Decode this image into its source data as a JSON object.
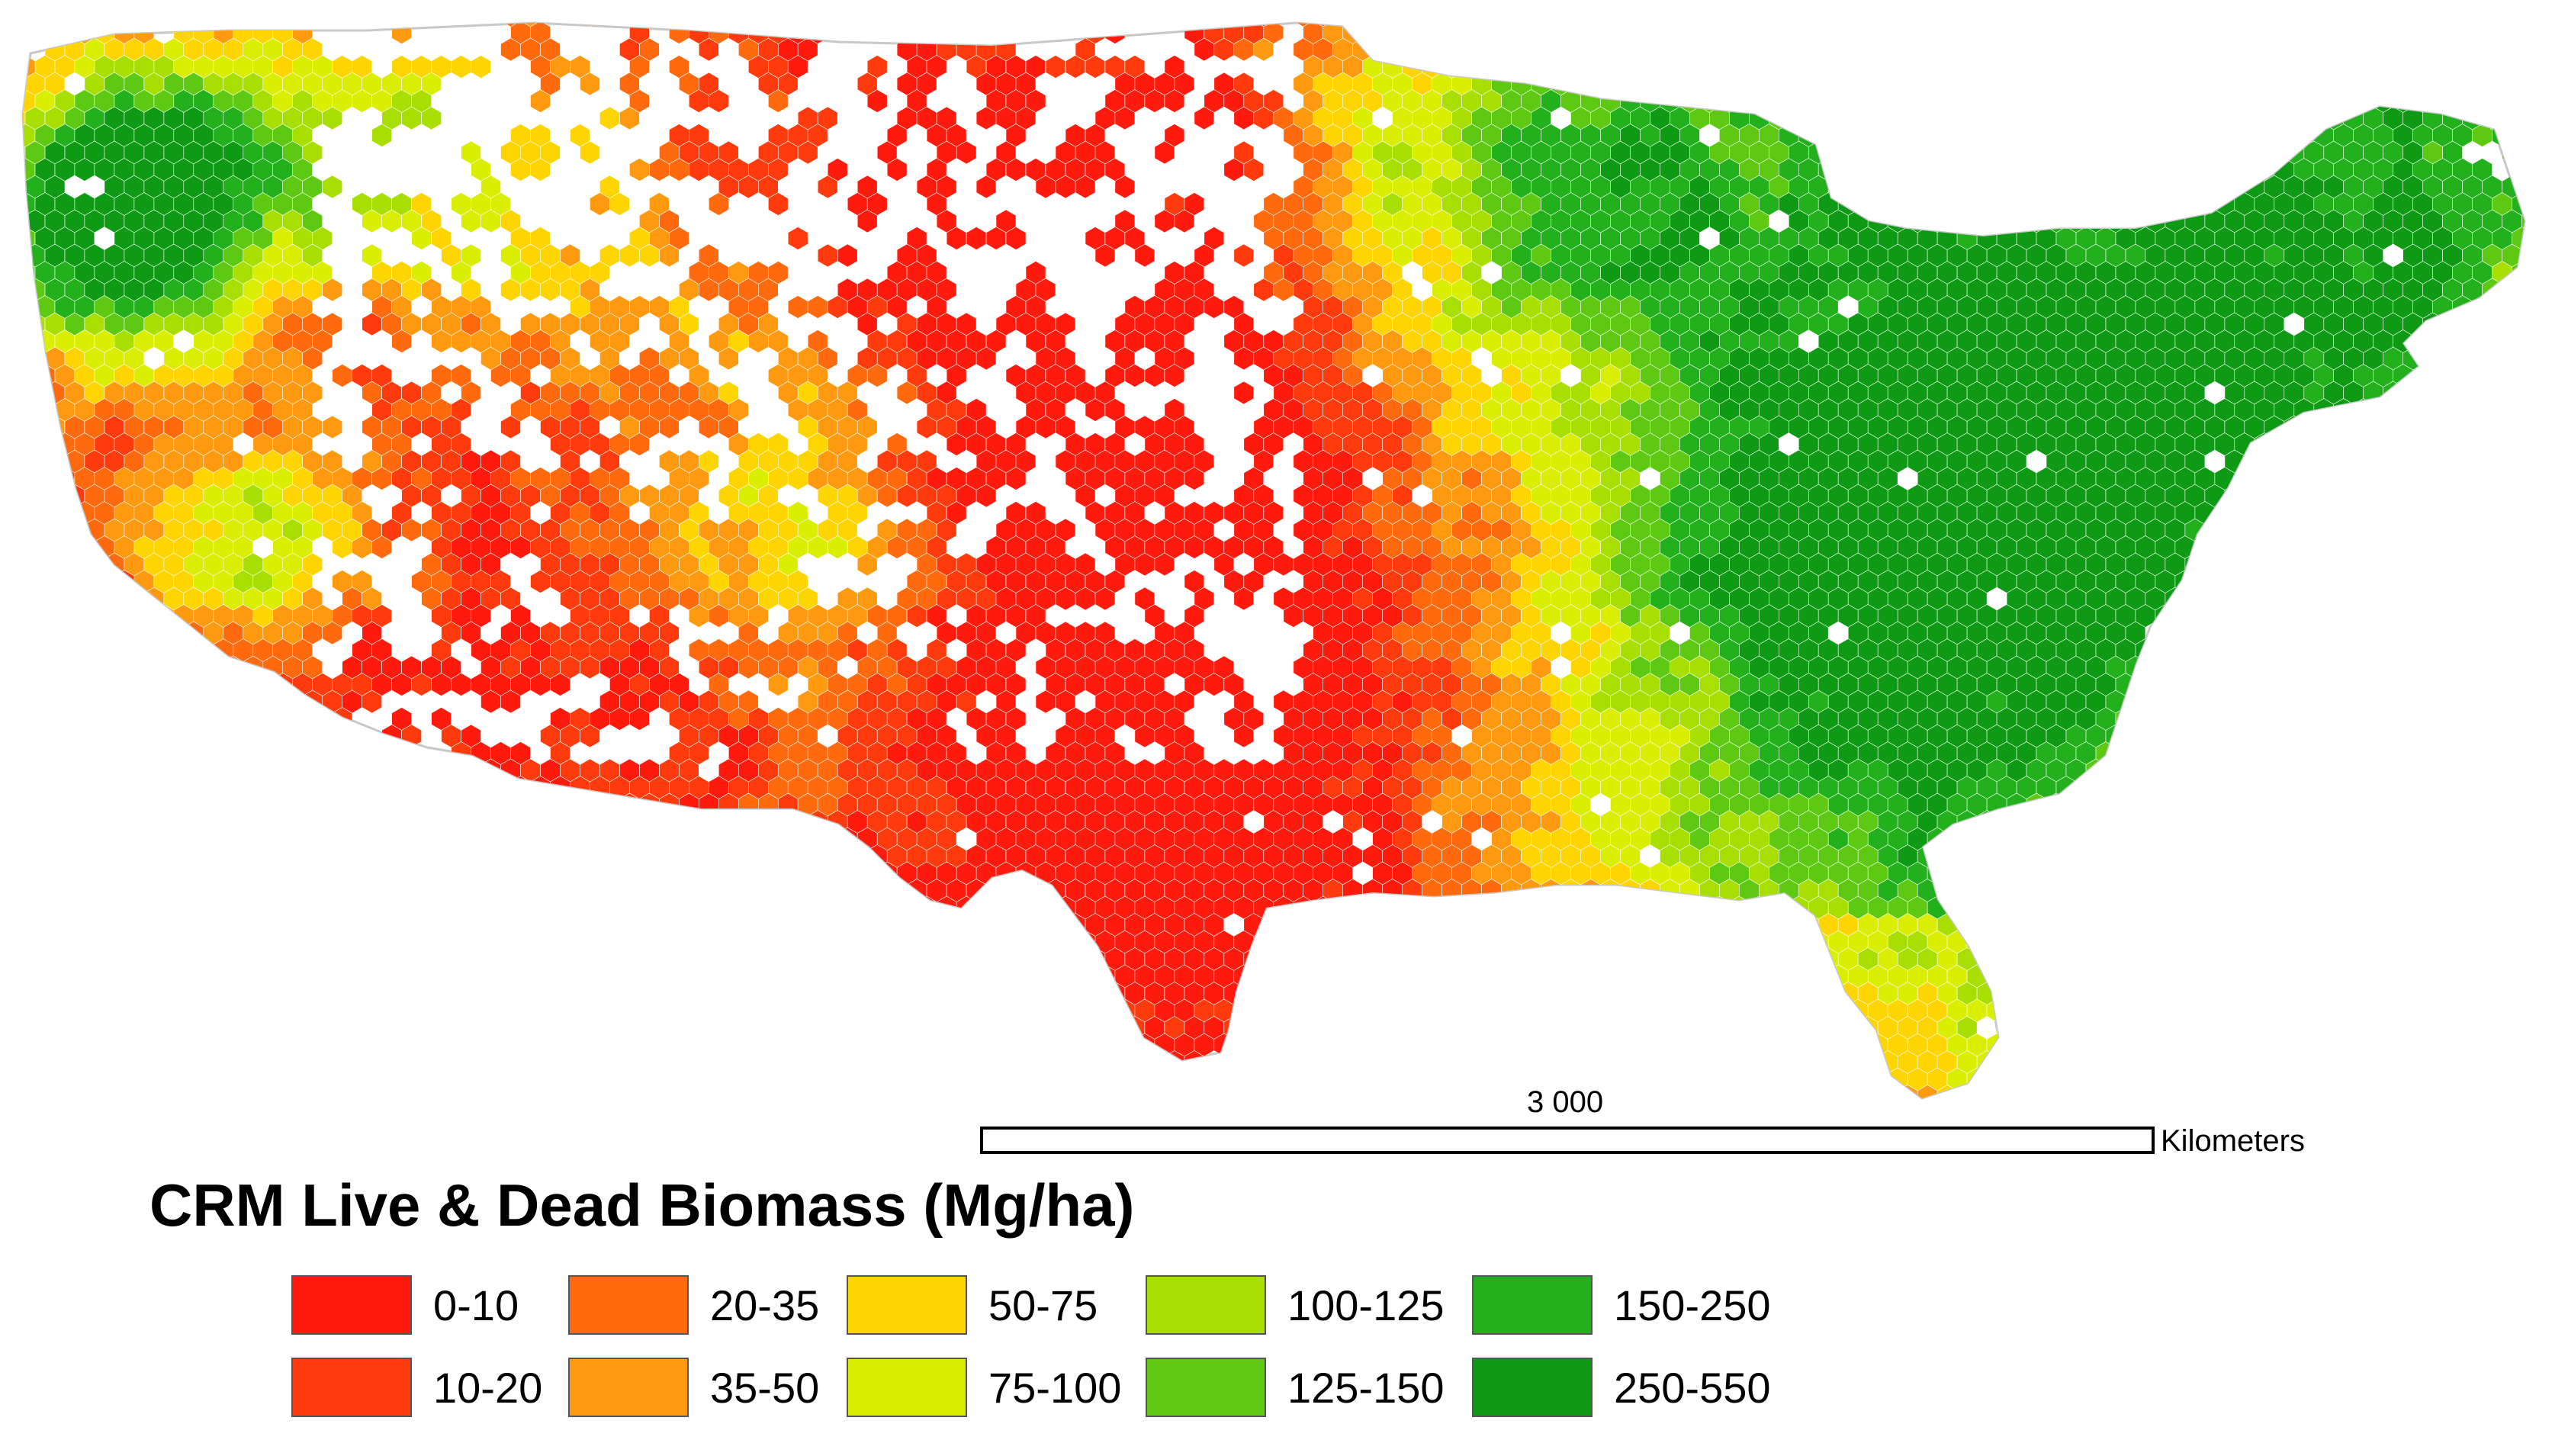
{
  "map": {
    "palette": [
      "#ff1a0e",
      "#ff3b0e",
      "#ff6a0e",
      "#ff9a10",
      "#ffd500",
      "#d9ee00",
      "#a8de00",
      "#5dc912",
      "#22b01c",
      "#0e9a14"
    ]
  },
  "scale": {
    "value_label": "3 000",
    "unit_label": "Kilometers"
  },
  "legend": {
    "title": "CRM Live & Dead Biomass (Mg/ha)",
    "items": [
      {
        "label": "0-10",
        "color": "#ff1a0e"
      },
      {
        "label": "10-20",
        "color": "#ff3b0e"
      },
      {
        "label": "20-35",
        "color": "#ff6a0e"
      },
      {
        "label": "35-50",
        "color": "#ff9a10"
      },
      {
        "label": "50-75",
        "color": "#ffd500"
      },
      {
        "label": "75-100",
        "color": "#d9ee00"
      },
      {
        "label": "100-125",
        "color": "#a8de00"
      },
      {
        "label": "125-150",
        "color": "#5dc912"
      },
      {
        "label": "150-250",
        "color": "#22b01c"
      },
      {
        "label": "250-550",
        "color": "#0e9a14"
      }
    ]
  }
}
